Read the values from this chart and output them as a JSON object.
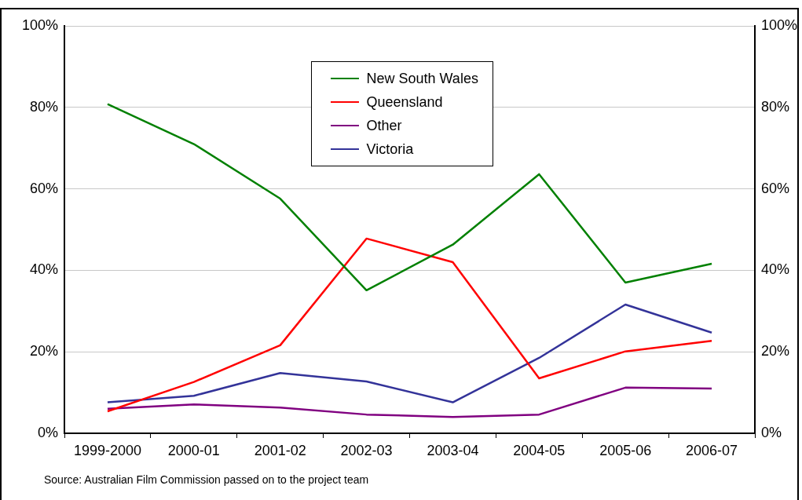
{
  "chart_data": {
    "type": "line",
    "categories": [
      "1999-2000",
      "2000-01",
      "2001-02",
      "2002-03",
      "2003-04",
      "2004-05",
      "2005-06",
      "2006-07"
    ],
    "series": [
      {
        "name": "New South Wales",
        "color": "#008000",
        "values": [
          80.8,
          71.0,
          57.6,
          35.1,
          46.3,
          63.6,
          37.0,
          41.6
        ]
      },
      {
        "name": "Queensland",
        "color": "#ff0000",
        "values": [
          5.4,
          12.6,
          21.6,
          47.8,
          42.0,
          13.5,
          20.1,
          22.7
        ]
      },
      {
        "name": "Other",
        "color": "#800080",
        "values": [
          6.0,
          7.1,
          6.3,
          4.6,
          4.0,
          4.6,
          11.2,
          11.0
        ]
      },
      {
        "name": "Victoria",
        "color": "#333399",
        "values": [
          7.6,
          9.2,
          14.8,
          12.7,
          7.6,
          18.5,
          31.6,
          24.7
        ]
      }
    ],
    "ylim": [
      0,
      100
    ],
    "yticks": [
      {
        "value": 0,
        "label": "0%"
      },
      {
        "value": 20,
        "label": "20%"
      },
      {
        "value": 40,
        "label": "40%"
      },
      {
        "value": 60,
        "label": "60%"
      },
      {
        "value": 80,
        "label": "80%"
      },
      {
        "value": 100,
        "label": "100%"
      }
    ],
    "y2lim": [
      0,
      100
    ],
    "y2ticks": [
      {
        "value": 0,
        "label": "0%"
      },
      {
        "value": 20,
        "label": "20%"
      },
      {
        "value": 40,
        "label": "40%"
      },
      {
        "value": 60,
        "label": "60%"
      },
      {
        "value": 80,
        "label": "80%"
      },
      {
        "value": 100,
        "label": "100%"
      }
    ],
    "grid": "y",
    "legend": "top",
    "marker": "none",
    "line_style": "solid",
    "annotations": [
      "Source: Australian Film Commission passed on to the project team"
    ]
  }
}
